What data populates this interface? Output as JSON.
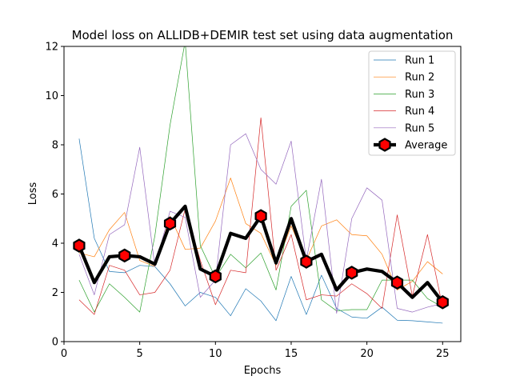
{
  "chart_data": {
    "type": "line",
    "title": "Model loss on ALLIDB+DEMIR test set using data augmentation",
    "xlabel": "Epochs",
    "ylabel": "Loss",
    "xlim": [
      0,
      26.2
    ],
    "ylim": [
      0,
      12
    ],
    "xticks": [
      "0",
      "5",
      "10",
      "15",
      "20",
      "25"
    ],
    "yticks": [
      "0",
      "2",
      "4",
      "6",
      "8",
      "10",
      "12"
    ],
    "legend_position": "top-right",
    "grid": false,
    "x": [
      1,
      2,
      3,
      4,
      5,
      6,
      7,
      8,
      9,
      10,
      11,
      12,
      13,
      14,
      15,
      16,
      17,
      18,
      19,
      20,
      21,
      22,
      23,
      24,
      25
    ],
    "series": [
      {
        "name": "Run 1",
        "color": "#1f77b4",
        "width": 0.7,
        "values": [
          8.25,
          4.2,
          2.85,
          2.8,
          3.1,
          3.05,
          2.35,
          1.45,
          2.0,
          1.8,
          1.05,
          2.15,
          1.65,
          0.85,
          2.65,
          1.1,
          2.7,
          1.35,
          1.0,
          0.95,
          1.4,
          0.87,
          0.85,
          0.8,
          0.75
        ]
      },
      {
        "name": "Run 2",
        "color": "#ff7f0e",
        "width": 0.7,
        "values": [
          3.6,
          3.45,
          4.55,
          5.25,
          3.3,
          3.05,
          5.1,
          3.75,
          3.8,
          4.9,
          6.65,
          4.8,
          4.4,
          3.1,
          4.7,
          3.3,
          4.7,
          4.95,
          4.35,
          4.3,
          3.55,
          2.1,
          2.45,
          3.25,
          2.75
        ]
      },
      {
        "name": "Run 3",
        "color": "#2ca02c",
        "width": 0.7,
        "values": [
          2.5,
          1.2,
          2.35,
          1.8,
          1.2,
          4.3,
          8.8,
          12.2,
          3.9,
          2.6,
          3.55,
          3.0,
          3.6,
          2.1,
          5.5,
          6.15,
          1.7,
          1.25,
          1.3,
          1.3,
          2.5,
          2.5,
          2.5,
          1.75,
          1.4
        ]
      },
      {
        "name": "Run 4",
        "color": "#d62728",
        "width": 0.7,
        "values": [
          1.7,
          1.1,
          3.1,
          2.9,
          1.9,
          2.0,
          2.9,
          5.4,
          3.3,
          1.5,
          2.9,
          2.8,
          9.1,
          2.9,
          4.35,
          1.7,
          1.9,
          1.85,
          2.35,
          1.95,
          1.35,
          5.15,
          1.85,
          4.35,
          1.4
        ]
      },
      {
        "name": "Run 5",
        "color": "#9467bd",
        "width": 0.7,
        "values": [
          3.55,
          1.9,
          4.35,
          4.75,
          7.9,
          3.05,
          5.3,
          5.05,
          1.8,
          2.5,
          8.0,
          8.45,
          7.0,
          6.4,
          8.15,
          3.3,
          6.6,
          1.15,
          5.0,
          6.25,
          5.75,
          1.35,
          1.2,
          1.4,
          1.55
        ]
      },
      {
        "name": "Average",
        "color": "#000000",
        "width": 4.2,
        "marker": "hexagon",
        "marker_color": "#ff0000",
        "marker_every": 3,
        "values": [
          3.9,
          2.4,
          3.45,
          3.5,
          3.45,
          3.15,
          4.8,
          5.5,
          2.95,
          2.65,
          4.4,
          4.2,
          5.1,
          3.2,
          5.0,
          3.25,
          3.55,
          2.1,
          2.8,
          2.95,
          2.85,
          2.4,
          1.8,
          2.4,
          1.6
        ]
      }
    ]
  }
}
